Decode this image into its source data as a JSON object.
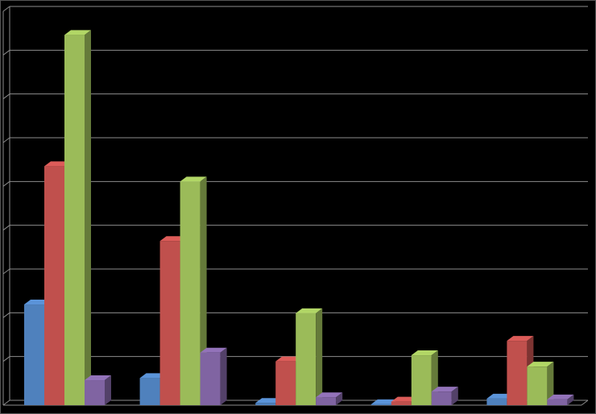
{
  "chart_data": {
    "type": "bar3d",
    "categories": [
      null,
      null,
      null,
      null,
      null
    ],
    "series": [
      {
        "color": "#4f81bd",
        "values": [
          2.3,
          0.62,
          0.05,
          0.02,
          0.15
        ]
      },
      {
        "color": "#c0504d",
        "values": [
          5.46,
          3.75,
          1.0,
          0.08,
          1.47
        ]
      },
      {
        "color": "#9bbb59",
        "values": [
          8.46,
          5.11,
          2.1,
          1.14,
          0.88
        ]
      },
      {
        "color": "#8064a2",
        "values": [
          0.57,
          1.2,
          0.18,
          0.31,
          0.13
        ]
      }
    ],
    "ylim": [
      0,
      9
    ],
    "yticks": [
      0,
      1,
      2,
      3,
      4,
      5,
      6,
      7,
      8,
      9
    ],
    "grid": true
  }
}
